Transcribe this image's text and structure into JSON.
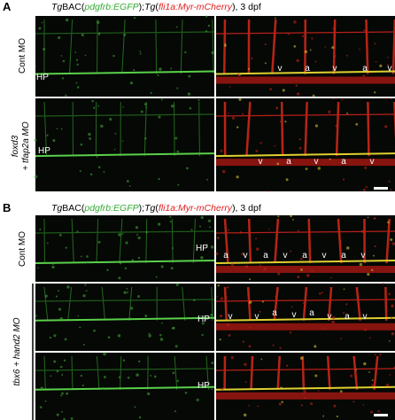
{
  "panels": [
    {
      "label": "A",
      "title": [
        "Tg",
        "BAC(",
        "pdgfrb:EGFP",
        ");",
        "Tg",
        "(",
        "fli1a:Myr-mCherry",
        "), 3 dpf"
      ],
      "rows": [
        {
          "label": [
            "Cont MO"
          ],
          "annotations": [
            "HP",
            "v",
            "a",
            "v",
            "a",
            "v"
          ]
        },
        {
          "label": [
            "foxd3",
            "+ tfap2a MO"
          ],
          "annotations": [
            "HP",
            "v",
            "a",
            "v",
            "a",
            "v"
          ]
        }
      ]
    },
    {
      "label": "B",
      "title": [
        "Tg",
        "BAC(",
        "pdgfrb:EGFP",
        ");",
        "Tg",
        "(",
        "fli1a:Myr-mCherry",
        "), 3 dpf"
      ],
      "rows": [
        {
          "label": [
            "Cont MO"
          ],
          "annotations": [
            "HP",
            "a",
            "v",
            "a",
            "v",
            "a",
            "v",
            "a",
            "v"
          ]
        },
        {
          "label": [
            "tbx6 + hand2 MO"
          ],
          "annotations": [
            "HP",
            "v",
            "v",
            "a",
            "v",
            "a",
            "v",
            "a",
            "v"
          ]
        },
        {
          "annotations": [
            "HP"
          ]
        }
      ]
    }
  ]
}
